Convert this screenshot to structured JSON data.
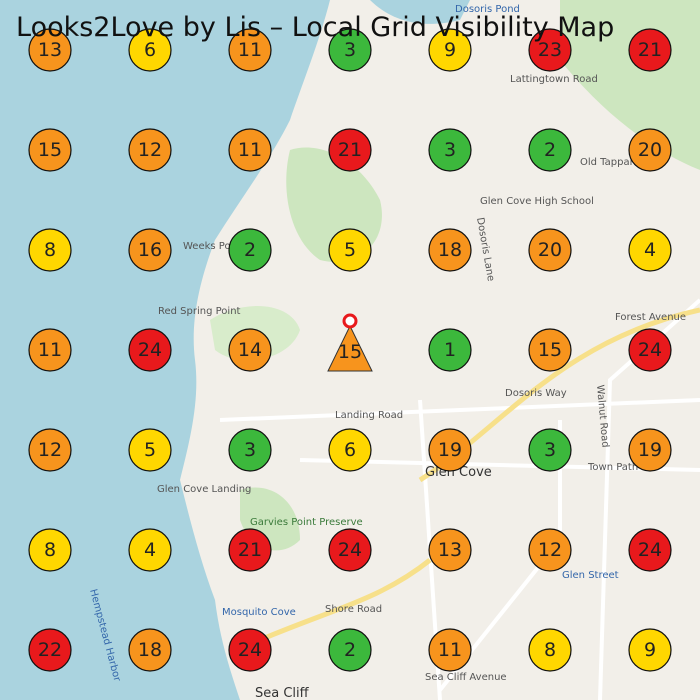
{
  "title": "Looks2Love by Lis – Local Grid Visibility Map",
  "grid": {
    "rows": [
      [
        {
          "rank": 13,
          "color": "#f7941d"
        },
        {
          "rank": 6,
          "color": "#ffd700"
        },
        {
          "rank": 11,
          "color": "#f7941d"
        },
        {
          "rank": 3,
          "color": "#3cb83c"
        },
        {
          "rank": 9,
          "color": "#ffd700"
        },
        {
          "rank": 23,
          "color": "#e8191c"
        },
        {
          "rank": 21,
          "color": "#e8191c"
        }
      ],
      [
        {
          "rank": 15,
          "color": "#f7941d"
        },
        {
          "rank": 12,
          "color": "#f7941d"
        },
        {
          "rank": 11,
          "color": "#f7941d"
        },
        {
          "rank": 21,
          "color": "#e8191c"
        },
        {
          "rank": 3,
          "color": "#3cb83c"
        },
        {
          "rank": 2,
          "color": "#3cb83c"
        },
        {
          "rank": 20,
          "color": "#f7941d"
        }
      ],
      [
        {
          "rank": 8,
          "color": "#ffd700"
        },
        {
          "rank": 16,
          "color": "#f7941d"
        },
        {
          "rank": 2,
          "color": "#3cb83c"
        },
        {
          "rank": 5,
          "color": "#ffd700"
        },
        {
          "rank": 18,
          "color": "#f7941d"
        },
        {
          "rank": 20,
          "color": "#f7941d"
        },
        {
          "rank": 4,
          "color": "#ffd700"
        }
      ],
      [
        {
          "rank": 11,
          "color": "#f7941d"
        },
        {
          "rank": 24,
          "color": "#e8191c"
        },
        {
          "rank": 14,
          "color": "#f7941d"
        },
        {
          "rank": 15,
          "color": "#f7941d",
          "marker": "triangle"
        },
        {
          "rank": 1,
          "color": "#3cb83c"
        },
        {
          "rank": 15,
          "color": "#f7941d"
        },
        {
          "rank": 24,
          "color": "#e8191c"
        }
      ],
      [
        {
          "rank": 12,
          "color": "#f7941d"
        },
        {
          "rank": 5,
          "color": "#ffd700"
        },
        {
          "rank": 3,
          "color": "#3cb83c"
        },
        {
          "rank": 6,
          "color": "#ffd700"
        },
        {
          "rank": 19,
          "color": "#f7941d"
        },
        {
          "rank": 3,
          "color": "#3cb83c"
        },
        {
          "rank": 19,
          "color": "#f7941d"
        }
      ],
      [
        {
          "rank": 8,
          "color": "#ffd700"
        },
        {
          "rank": 4,
          "color": "#ffd700"
        },
        {
          "rank": 21,
          "color": "#e8191c"
        },
        {
          "rank": 24,
          "color": "#e8191c"
        },
        {
          "rank": 13,
          "color": "#f7941d"
        },
        {
          "rank": 12,
          "color": "#f7941d"
        },
        {
          "rank": 24,
          "color": "#e8191c"
        }
      ],
      [
        {
          "rank": 22,
          "color": "#e8191c"
        },
        {
          "rank": 18,
          "color": "#f7941d"
        },
        {
          "rank": 24,
          "color": "#e8191c"
        },
        {
          "rank": 2,
          "color": "#3cb83c"
        },
        {
          "rank": 11,
          "color": "#f7941d"
        },
        {
          "rank": 8,
          "color": "#ffd700"
        },
        {
          "rank": 9,
          "color": "#ffd700"
        }
      ]
    ]
  },
  "map_labels": [
    "Lattingtown Road",
    "Old Tappan",
    "Glen Cove High School",
    "Weeks Point",
    "Red Spring Point",
    "Forest Avenue",
    "Dosoris Way",
    "Landing Road",
    "Glen Cove",
    "Glen Cove Landing",
    "Garvies Point Preserve",
    "Town Path",
    "Glen Street",
    "Shore Road",
    "Sea Cliff Avenue",
    "Sea Cliff",
    "Mosquito Cove",
    "Hempstead Harbor",
    "Dosoris Lane",
    "Walnut Road",
    "Dosoris Pond"
  ]
}
